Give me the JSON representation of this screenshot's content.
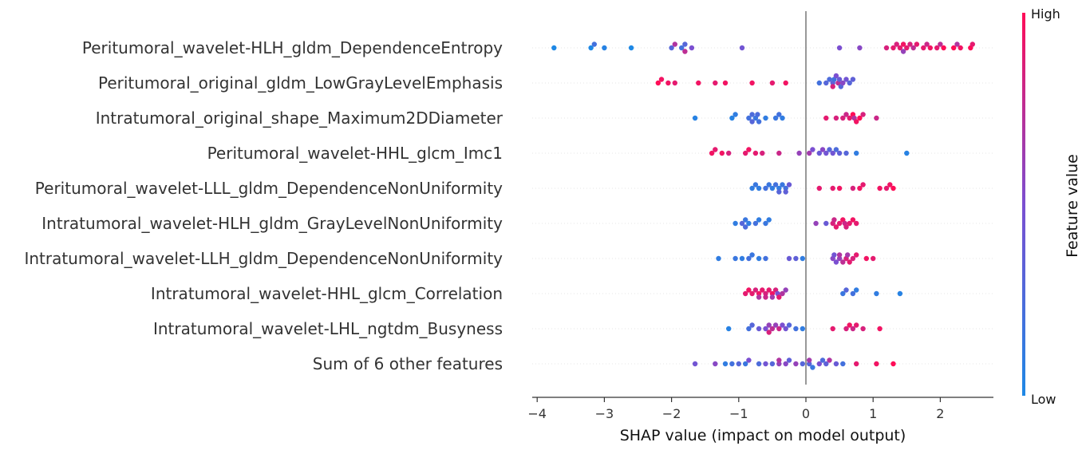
{
  "chart_data": {
    "type": "scatter",
    "subtype": "shap-beeswarm",
    "xlabel": "SHAP value (impact on model output)",
    "xlim": [
      -4.1,
      2.8
    ],
    "xticks": [
      -4,
      -3,
      -2,
      -1,
      0,
      1,
      2
    ],
    "xtick_labels": [
      "−4",
      "−3",
      "−2",
      "−1",
      "0",
      "1",
      "2"
    ],
    "colorbar": {
      "label": "Feature value",
      "high_label": "High",
      "low_label": "Low",
      "low_color": "#1e88e5",
      "high_color": "#ff0d57"
    },
    "features": [
      {
        "name": "Peritumoral_wavelet-HLH_gldm_DependenceEntropy",
        "points": [
          [
            -3.75,
            0.0
          ],
          [
            -3.2,
            0.0
          ],
          [
            -3.15,
            0.2
          ],
          [
            -3.0,
            0.05
          ],
          [
            -2.6,
            0.0
          ],
          [
            -2.0,
            0.3
          ],
          [
            -1.85,
            0.2
          ],
          [
            -1.8,
            0.3
          ],
          [
            -1.7,
            0.5
          ],
          [
            -1.95,
            0.7
          ],
          [
            -1.8,
            0.75
          ],
          [
            -0.95,
            0.45
          ],
          [
            0.5,
            0.5
          ],
          [
            0.8,
            0.55
          ],
          [
            1.2,
            0.85
          ],
          [
            1.3,
            0.9
          ],
          [
            1.35,
            0.85
          ],
          [
            1.4,
            0.9
          ],
          [
            1.45,
            0.95
          ],
          [
            1.5,
            0.9
          ],
          [
            1.55,
            0.85
          ],
          [
            1.65,
            0.9
          ],
          [
            1.75,
            0.9
          ],
          [
            1.85,
            0.95
          ],
          [
            1.95,
            0.9
          ],
          [
            2.05,
            1.0
          ],
          [
            2.2,
            1.0
          ],
          [
            2.3,
            0.95
          ],
          [
            2.45,
            1.0
          ],
          [
            1.45,
            0.6
          ],
          [
            1.6,
            0.75
          ],
          [
            1.8,
            0.8
          ],
          [
            2.0,
            0.75
          ],
          [
            2.25,
            0.7
          ],
          [
            2.48,
            0.9
          ]
        ]
      },
      {
        "name": "Peritumoral_original_gldm_LowGrayLevelEmphasis",
        "points": [
          [
            -2.2,
            1.0
          ],
          [
            -2.15,
            0.95
          ],
          [
            -2.05,
            0.95
          ],
          [
            -1.95,
            0.9
          ],
          [
            -1.6,
            0.95
          ],
          [
            -1.35,
            0.9
          ],
          [
            -1.2,
            0.95
          ],
          [
            -0.8,
            0.95
          ],
          [
            -0.5,
            0.9
          ],
          [
            -0.3,
            0.95
          ],
          [
            0.2,
            0.2
          ],
          [
            0.3,
            0.3
          ],
          [
            0.35,
            0.25
          ],
          [
            0.4,
            0.35
          ],
          [
            0.45,
            0.5
          ],
          [
            0.5,
            0.4
          ],
          [
            0.55,
            0.55
          ],
          [
            0.6,
            0.45
          ],
          [
            0.7,
            0.35
          ],
          [
            0.42,
            0.2
          ],
          [
            0.48,
            0.75
          ],
          [
            0.4,
            0.85
          ],
          [
            0.52,
            0.3
          ],
          [
            0.65,
            0.3
          ]
        ]
      },
      {
        "name": "Intratumoral_original_shape_Maximum2DDiameter",
        "points": [
          [
            -1.65,
            0.05
          ],
          [
            -1.1,
            0.05
          ],
          [
            -1.05,
            0.1
          ],
          [
            -0.85,
            0.2
          ],
          [
            -0.8,
            0.25
          ],
          [
            -0.75,
            0.15
          ],
          [
            -0.7,
            0.2
          ],
          [
            -0.6,
            0.1
          ],
          [
            -0.45,
            0.15
          ],
          [
            -0.4,
            0.2
          ],
          [
            -0.35,
            0.1
          ],
          [
            -0.8,
            0.3
          ],
          [
            -0.72,
            0.25
          ],
          [
            0.3,
            0.9
          ],
          [
            0.45,
            0.85
          ],
          [
            0.55,
            0.85
          ],
          [
            0.65,
            0.9
          ],
          [
            0.7,
            1.0
          ],
          [
            0.75,
            0.95
          ],
          [
            0.8,
            1.0
          ],
          [
            0.85,
            0.85
          ],
          [
            0.6,
            0.8
          ],
          [
            0.72,
            0.7
          ],
          [
            1.05,
            0.8
          ]
        ]
      },
      {
        "name": "Peritumoral_wavelet-HHL_glcm_Imc1",
        "points": [
          [
            -1.4,
            0.95
          ],
          [
            -1.35,
            0.9
          ],
          [
            -1.25,
            0.95
          ],
          [
            -1.15,
            0.85
          ],
          [
            -0.9,
            0.9
          ],
          [
            -0.85,
            0.95
          ],
          [
            -0.75,
            0.9
          ],
          [
            -0.65,
            0.85
          ],
          [
            -0.4,
            0.8
          ],
          [
            -0.1,
            0.6
          ],
          [
            0.1,
            0.5
          ],
          [
            0.2,
            0.4
          ],
          [
            0.3,
            0.45
          ],
          [
            0.4,
            0.45
          ],
          [
            0.5,
            0.35
          ],
          [
            0.05,
            0.65
          ],
          [
            0.25,
            0.55
          ],
          [
            0.35,
            0.3
          ],
          [
            0.6,
            0.3
          ],
          [
            0.75,
            0.1
          ],
          [
            1.5,
            0.05
          ],
          [
            0.45,
            0.25
          ]
        ]
      },
      {
        "name": "Peritumoral_wavelet-LLL_gldm_DependenceNonUniformity",
        "points": [
          [
            -0.8,
            0.1
          ],
          [
            -0.75,
            0.15
          ],
          [
            -0.7,
            0.1
          ],
          [
            -0.6,
            0.2
          ],
          [
            -0.55,
            0.15
          ],
          [
            -0.5,
            0.1
          ],
          [
            -0.45,
            0.2
          ],
          [
            -0.4,
            0.1
          ],
          [
            -0.35,
            0.15
          ],
          [
            -0.3,
            0.2
          ],
          [
            -0.25,
            0.4
          ],
          [
            -0.3,
            0.35
          ],
          [
            -0.4,
            0.3
          ],
          [
            0.2,
            0.9
          ],
          [
            0.4,
            0.9
          ],
          [
            0.5,
            0.95
          ],
          [
            0.7,
            0.85
          ],
          [
            0.8,
            0.95
          ],
          [
            0.85,
            0.9
          ],
          [
            1.1,
            0.95
          ],
          [
            1.2,
            0.9
          ],
          [
            1.3,
            1.0
          ],
          [
            1.25,
            0.95
          ]
        ]
      },
      {
        "name": "Intratumoral_wavelet-HLH_gldm_GrayLevelNonUniformity",
        "points": [
          [
            -1.05,
            0.1
          ],
          [
            -0.95,
            0.3
          ],
          [
            -0.9,
            0.15
          ],
          [
            -0.85,
            0.1
          ],
          [
            -0.75,
            0.2
          ],
          [
            -0.7,
            0.1
          ],
          [
            -0.6,
            0.15
          ],
          [
            -0.55,
            0.1
          ],
          [
            -0.9,
            0.25
          ],
          [
            0.15,
            0.6
          ],
          [
            0.3,
            0.4
          ],
          [
            0.4,
            0.85
          ],
          [
            0.45,
            0.9
          ],
          [
            0.5,
            0.9
          ],
          [
            0.55,
            0.95
          ],
          [
            0.6,
            0.85
          ],
          [
            0.65,
            0.9
          ],
          [
            0.7,
            0.95
          ],
          [
            0.75,
            0.9
          ],
          [
            0.42,
            0.8
          ],
          [
            0.58,
            0.8
          ]
        ]
      },
      {
        "name": "Intratumoral_wavelet-LLH_gldm_DependenceNonUniformity",
        "points": [
          [
            -1.3,
            0.1
          ],
          [
            -1.05,
            0.15
          ],
          [
            -0.95,
            0.1
          ],
          [
            -0.85,
            0.2
          ],
          [
            -0.8,
            0.15
          ],
          [
            -0.7,
            0.1
          ],
          [
            -0.6,
            0.2
          ],
          [
            -0.25,
            0.4
          ],
          [
            -0.15,
            0.35
          ],
          [
            -0.05,
            0.1
          ],
          [
            0.4,
            0.55
          ],
          [
            0.45,
            0.5
          ],
          [
            0.5,
            0.6
          ],
          [
            0.55,
            0.75
          ],
          [
            0.6,
            0.85
          ],
          [
            0.65,
            0.9
          ],
          [
            0.7,
            0.85
          ],
          [
            0.75,
            0.9
          ],
          [
            0.9,
            0.95
          ],
          [
            1.0,
            0.9
          ],
          [
            0.42,
            0.45
          ],
          [
            0.5,
            0.7
          ],
          [
            0.62,
            0.65
          ]
        ]
      },
      {
        "name": "Intratumoral_wavelet-HHL_glcm_Correlation",
        "points": [
          [
            -0.9,
            0.9
          ],
          [
            -0.85,
            0.95
          ],
          [
            -0.8,
            0.9
          ],
          [
            -0.75,
            0.85
          ],
          [
            -0.7,
            0.95
          ],
          [
            -0.65,
            0.9
          ],
          [
            -0.6,
            0.85
          ],
          [
            -0.55,
            0.9
          ],
          [
            -0.5,
            0.95
          ],
          [
            -0.45,
            0.85
          ],
          [
            -0.4,
            0.9
          ],
          [
            -0.35,
            0.7
          ],
          [
            -0.3,
            0.6
          ],
          [
            -0.5,
            0.65
          ],
          [
            -0.42,
            0.5
          ],
          [
            -0.6,
            0.8
          ],
          [
            -0.7,
            0.7
          ],
          [
            0.55,
            0.15
          ],
          [
            0.7,
            0.2
          ],
          [
            0.75,
            0.1
          ],
          [
            1.05,
            0.1
          ],
          [
            1.4,
            0.05
          ],
          [
            0.6,
            0.3
          ]
        ]
      },
      {
        "name": "Intratumoral_wavelet-LHL_ngtdm_Busyness",
        "points": [
          [
            -1.15,
            0.05
          ],
          [
            -0.85,
            0.2
          ],
          [
            -0.8,
            0.3
          ],
          [
            -0.7,
            0.4
          ],
          [
            -0.6,
            0.5
          ],
          [
            -0.55,
            0.6
          ],
          [
            -0.5,
            0.75
          ],
          [
            -0.45,
            0.6
          ],
          [
            -0.4,
            0.8
          ],
          [
            -0.35,
            0.5
          ],
          [
            -0.25,
            0.3
          ],
          [
            -0.15,
            0.2
          ],
          [
            -0.05,
            0.1
          ],
          [
            -0.55,
            0.85
          ],
          [
            -0.3,
            0.45
          ],
          [
            0.4,
            0.9
          ],
          [
            0.6,
            0.85
          ],
          [
            0.65,
            0.95
          ],
          [
            0.75,
            0.9
          ],
          [
            0.85,
            0.85
          ],
          [
            1.1,
            0.95
          ],
          [
            0.7,
            0.8
          ]
        ]
      },
      {
        "name": "Sum of 6 other features",
        "points": [
          [
            -1.65,
            0.45
          ],
          [
            -1.35,
            0.55
          ],
          [
            -1.2,
            0.1
          ],
          [
            -1.1,
            0.2
          ],
          [
            -1.0,
            0.3
          ],
          [
            -0.9,
            0.15
          ],
          [
            -0.85,
            0.5
          ],
          [
            -0.7,
            0.25
          ],
          [
            -0.6,
            0.45
          ],
          [
            -0.5,
            0.3
          ],
          [
            -0.4,
            0.6
          ],
          [
            -0.3,
            0.55
          ],
          [
            -0.25,
            0.35
          ],
          [
            -0.15,
            0.6
          ],
          [
            -0.05,
            0.3
          ],
          [
            0.05,
            0.3
          ],
          [
            0.1,
            0.15
          ],
          [
            0.2,
            0.5
          ],
          [
            0.3,
            0.35
          ],
          [
            0.35,
            0.7
          ],
          [
            0.45,
            0.4
          ],
          [
            0.55,
            0.2
          ],
          [
            0.75,
            0.9
          ],
          [
            1.05,
            0.95
          ],
          [
            1.3,
            1.0
          ],
          [
            -0.4,
            0.7
          ],
          [
            0.05,
            0.65
          ],
          [
            0.25,
            0.25
          ]
        ]
      }
    ]
  }
}
